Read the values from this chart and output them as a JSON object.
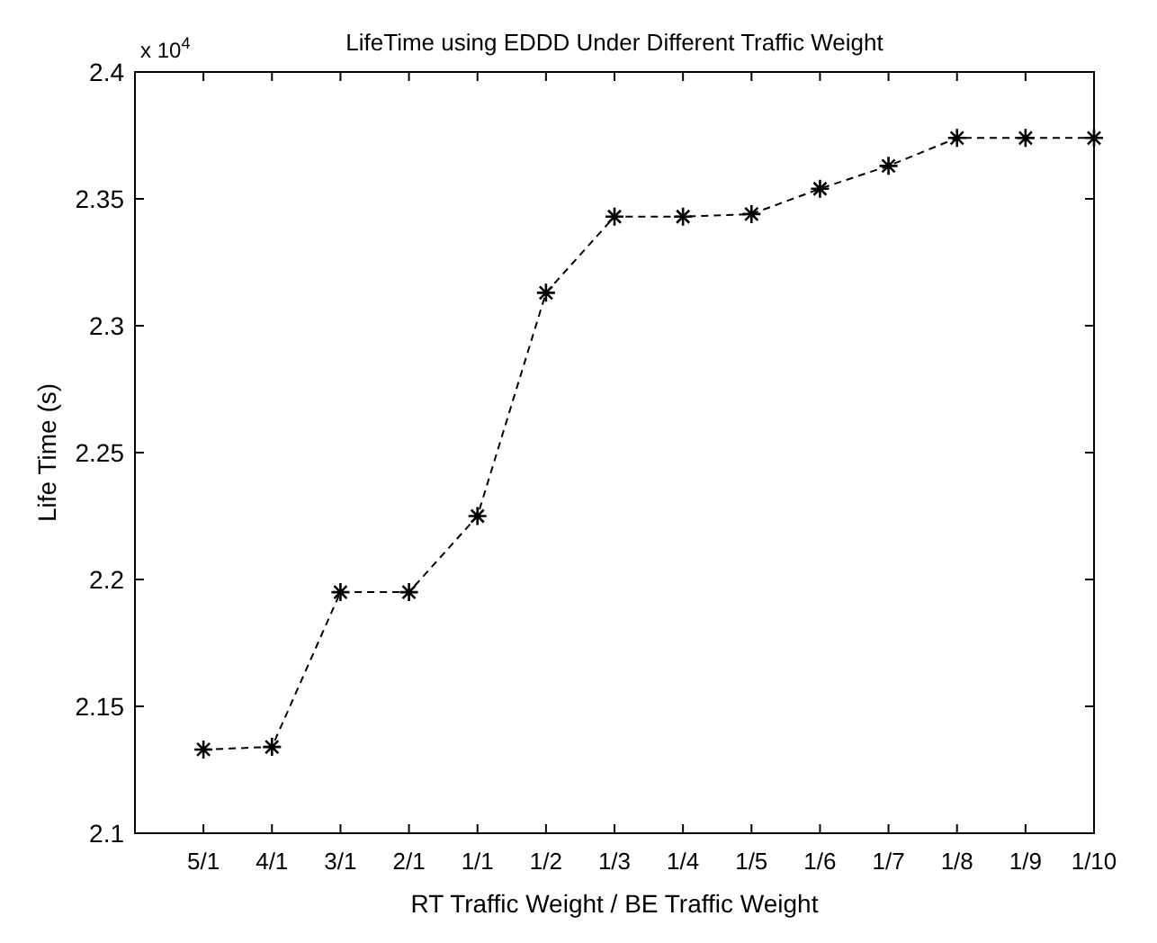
{
  "chart_data": {
    "type": "line",
    "title": "LifeTime using EDDD Under Different Traffic Weight",
    "xlabel": "RT Traffic Weight / BE Traffic Weight",
    "ylabel": "Life Time (s)",
    "annotations": [
      "x 10$^{4}$"
    ],
    "categories": [
      "5/1",
      "4/1",
      "3/1",
      "2/1",
      "1/1",
      "1/2",
      "1/3",
      "1/4",
      "1/5",
      "1/6",
      "1/7",
      "1/8",
      "1/9",
      "1/10"
    ],
    "series": [
      {
        "color": "#000000",
        "values": [
          2.133,
          2.134,
          2.195,
          2.195,
          2.225,
          2.313,
          2.343,
          2.343,
          2.344,
          2.354,
          2.363,
          2.374,
          2.374,
          2.374
        ]
      }
    ],
    "ylim": [
      2.1,
      2.4
    ],
    "yticks": [
      2.1,
      {
        "value": 2.15,
        "label": "2.15"
      },
      {
        "value": 2.2,
        "label": "2.2"
      },
      {
        "value": 2.25,
        "label": "2.25"
      },
      {
        "value": 2.3,
        "label": "2.3"
      },
      {
        "value": 2.35,
        "label": "2.35"
      },
      2.4
    ],
    "grid": false,
    "marker": "cross",
    "line_style": "dashed"
  }
}
